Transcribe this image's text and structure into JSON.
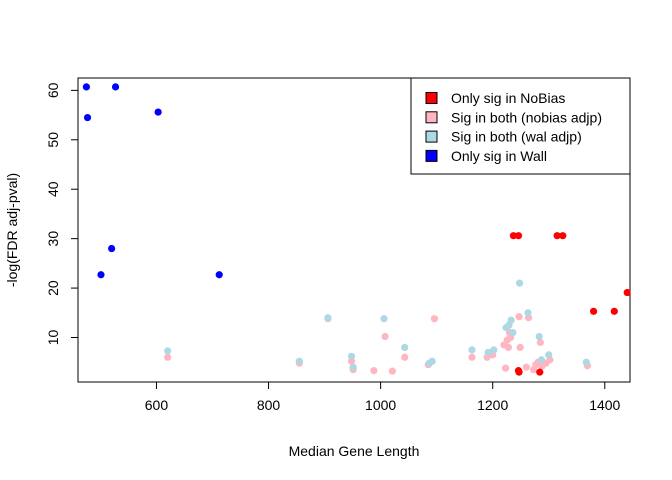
{
  "chart_data": {
    "type": "scatter",
    "title": "",
    "xlabel": "Median Gene Length",
    "ylabel": "-log(FDR adj-pval)",
    "xlim": [
      460,
      1445
    ],
    "ylim": [
      1,
      62.5
    ],
    "xticks": [
      600,
      800,
      1000,
      1200,
      1400
    ],
    "yticks": [
      10,
      20,
      30,
      40,
      50,
      60
    ],
    "grid": false,
    "legend_position": "top-right",
    "series": [
      {
        "name": "Only sig in NoBias",
        "color": "#FF0000",
        "points": [
          [
            1237,
            30.6
          ],
          [
            1246,
            30.6
          ],
          [
            1315,
            30.6
          ],
          [
            1325,
            30.6
          ],
          [
            1380,
            15.3
          ],
          [
            1417,
            15.3
          ],
          [
            1440,
            19.1
          ],
          [
            1246,
            3.3
          ],
          [
            1284,
            3.0
          ],
          [
            1247,
            3.0
          ]
        ]
      },
      {
        "name": "Sig in both (nobias adjp)",
        "color": "#FFB6C1",
        "points": [
          [
            620,
            6.0
          ],
          [
            855,
            4.8
          ],
          [
            906,
            13.8
          ],
          [
            948,
            5.2
          ],
          [
            951,
            3.5
          ],
          [
            988,
            3.3
          ],
          [
            1008,
            10.2
          ],
          [
            1021,
            3.2
          ],
          [
            1043,
            6.0
          ],
          [
            1085,
            4.5
          ],
          [
            1096,
            13.8
          ],
          [
            1163,
            6.0
          ],
          [
            1190,
            6.0
          ],
          [
            1200,
            6.5
          ],
          [
            1220,
            8.5
          ],
          [
            1223,
            3.8
          ],
          [
            1226,
            9.5
          ],
          [
            1228,
            8.0
          ],
          [
            1230,
            11.0
          ],
          [
            1232,
            10.0
          ],
          [
            1247,
            14.2
          ],
          [
            1249,
            8.0
          ],
          [
            1260,
            4.0
          ],
          [
            1264,
            14.0
          ],
          [
            1273,
            3.5
          ],
          [
            1277,
            4.5
          ],
          [
            1281,
            5.0
          ],
          [
            1285,
            9.0
          ],
          [
            1288,
            4.2
          ],
          [
            1295,
            4.8
          ],
          [
            1302,
            5.5
          ],
          [
            1369,
            4.3
          ]
        ]
      },
      {
        "name": "Sig in both (wal adjp)",
        "color": "#ADD8E6",
        "points": [
          [
            620,
            7.3
          ],
          [
            855,
            5.2
          ],
          [
            906,
            14.0
          ],
          [
            948,
            6.2
          ],
          [
            951,
            4.0
          ],
          [
            1006,
            13.8
          ],
          [
            1043,
            8.0
          ],
          [
            1087,
            4.8
          ],
          [
            1092,
            5.2
          ],
          [
            1163,
            7.5
          ],
          [
            1192,
            7.0
          ],
          [
            1202,
            7.5
          ],
          [
            1224,
            12.0
          ],
          [
            1229,
            12.5
          ],
          [
            1233,
            13.5
          ],
          [
            1236,
            11.0
          ],
          [
            1248,
            21.0
          ],
          [
            1263,
            15.0
          ],
          [
            1283,
            10.2
          ],
          [
            1287,
            5.5
          ],
          [
            1300,
            6.5
          ],
          [
            1367,
            5.0
          ]
        ]
      },
      {
        "name": "Only sig in Wall",
        "color": "#0000FF",
        "points": [
          [
            475,
            60.7
          ],
          [
            477,
            54.5
          ],
          [
            527,
            60.7
          ],
          [
            603,
            55.6
          ],
          [
            520,
            28.0
          ],
          [
            501,
            22.7
          ],
          [
            712,
            22.7
          ]
        ]
      }
    ]
  }
}
